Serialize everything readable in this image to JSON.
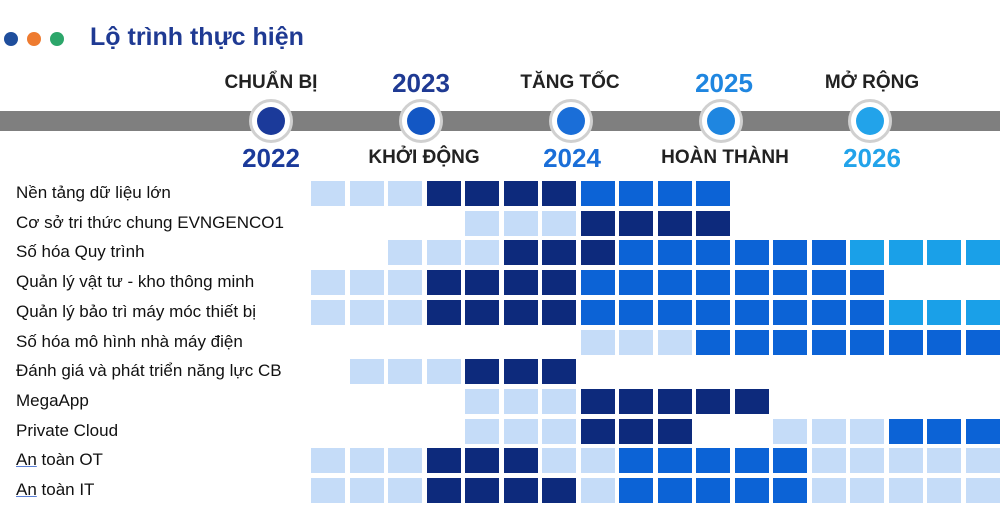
{
  "header": {
    "title": "Lộ trình thực hiện",
    "dots": [
      "#1f4e9c",
      "#ee7b30",
      "#2ca66a"
    ]
  },
  "timeline": {
    "milestones": [
      {
        "color": "#1b3a9a"
      },
      {
        "color": "#1357c4"
      },
      {
        "color": "#1a6ed8"
      },
      {
        "color": "#1f86e0"
      },
      {
        "color": "#22a3ea"
      }
    ],
    "phases_top": [
      "CHUẨN BỊ",
      "TĂNG TỐC",
      "MỞ RỘNG"
    ],
    "years_top": [
      "2023",
      "2025"
    ],
    "years_top_colors": [
      "#1f3a93",
      "#1f86e0"
    ],
    "phases_bottom": [
      "KHỞI ĐỘNG",
      "HOÀN THÀNH"
    ],
    "years_bottom": [
      "2022",
      "2024",
      "2026"
    ],
    "years_bottom_colors": [
      "#1b3a9a",
      "#1a6ed8",
      "#22a3ea"
    ]
  },
  "palette": {
    "L": "#c5dcf8",
    "D": "#0d2a7c",
    "M": "#0c63d6",
    "B": "#1aa0e8"
  },
  "rows": [
    {
      "label": "Nền tảng dữ liệu lớn",
      "cells": "LLLDDDDMMMM......."
    },
    {
      "label": "Cơ sở tri thức chung EVNGENCO1",
      "cells": "....LLLDDDD......."
    },
    {
      "label": "Số hóa Quy trình",
      "cells": "..LLLDDDMMMMMMBBBB"
    },
    {
      "label": "Quản lý vật tư - kho thông minh",
      "cells": "LLLDDDDMMMMMMMM..."
    },
    {
      "label": "Quản lý bảo trì máy móc thiết bị",
      "cells": "LLLDDDDMMMMMMMMBBB"
    },
    {
      "label": "Số hóa mô hình nhà máy điện",
      "cells": ".......LLLMMMMMMMM"
    },
    {
      "label": "Đánh giá và phát triển năng lực CB",
      "cells": ".LLLDDD..........."
    },
    {
      "label": "MegaApp",
      "cells": "....LLLDDDDD......"
    },
    {
      "label": "Private Cloud",
      "cells": "....LLLDDD..LLLMMMM"
    },
    {
      "label_underlined": "An",
      "label": " toàn OT",
      "cells": "LLLDDDLLMMMMMLLLLLL"
    },
    {
      "label_underlined": "An",
      "label": " toàn IT",
      "cells": "LLLDDDDLMMMMMLLLLLL"
    }
  ]
}
